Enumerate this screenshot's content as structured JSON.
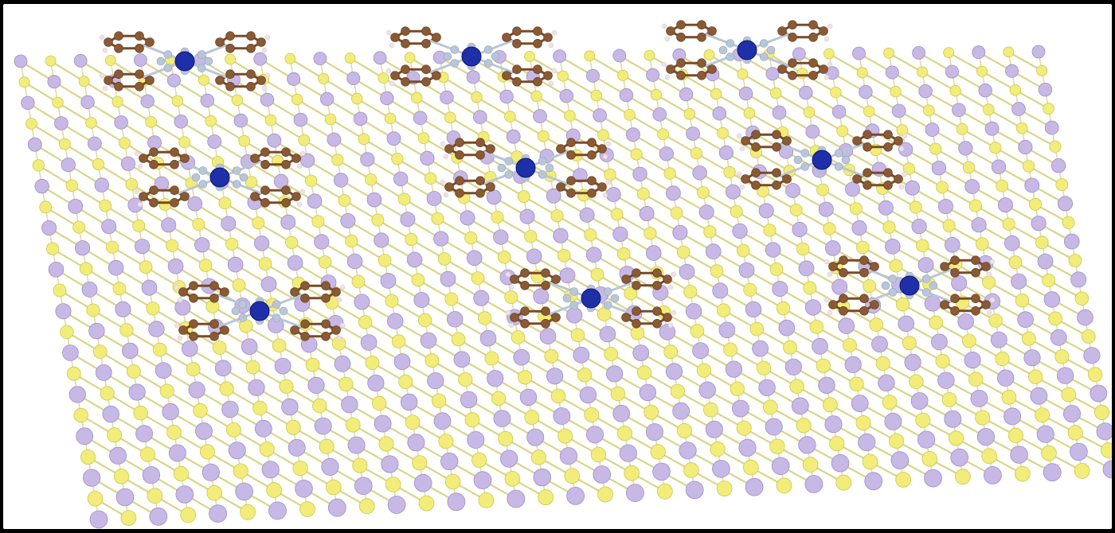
{
  "image": {
    "background_color": "#ffffff",
    "border_color": "#000000"
  },
  "lattice": {
    "metal_atom_color": "#c7b8e6",
    "metal_atom_edge": "#9f8fc7",
    "chalcogen_atom_color": "#f2ec7a",
    "chalcogen_atom_edge": "#cfc650",
    "bond_color": "#d9d58a"
  },
  "molecules": {
    "count": 9,
    "center_atom_color": "#1f2fa8",
    "carbon_color": "#8a5a34",
    "nitrogen_color": "#b9c6d8",
    "hydrogen_color": "#f0e2e6",
    "bond_color": "#7a4a28"
  }
}
